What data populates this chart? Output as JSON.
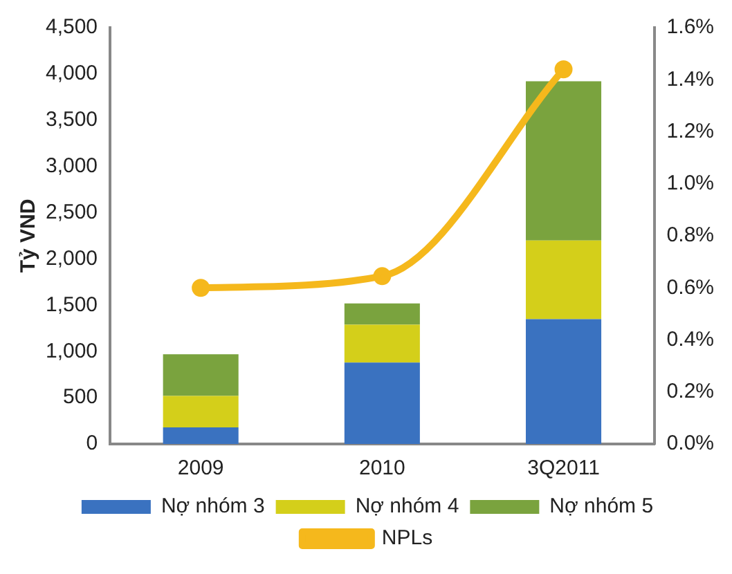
{
  "chart_data": {
    "type": "bar",
    "stacked": true,
    "ylabel": "Tỷ VND",
    "categories": [
      "2009",
      "2010",
      "3Q2011"
    ],
    "series": [
      {
        "name": "Nợ nhóm 3",
        "color": "#3a72c0",
        "values": [
          180,
          880,
          1350
        ]
      },
      {
        "name": "Nợ nhóm 4",
        "color": "#d4cf1a",
        "values": [
          340,
          410,
          850
        ]
      },
      {
        "name": "Nợ nhóm 5",
        "color": "#7aa33e",
        "values": [
          450,
          230,
          1720
        ]
      },
      {
        "name": "NPLs",
        "type": "line",
        "axis": "y2",
        "color": "#f5b81c",
        "values": [
          0.6,
          0.645,
          1.44
        ]
      }
    ],
    "ylim": [
      0,
      4500
    ],
    "yticks": [
      {
        "value": 0,
        "label": "0"
      },
      {
        "value": 500,
        "label": "500"
      },
      {
        "value": 1000,
        "label": "1,000"
      },
      {
        "value": 1500,
        "label": "1,500"
      },
      {
        "value": 2000,
        "label": "2,000"
      },
      {
        "value": 2500,
        "label": "2,500"
      },
      {
        "value": 3000,
        "label": "3,000"
      },
      {
        "value": 3500,
        "label": "3,500"
      },
      {
        "value": 4000,
        "label": "4,000"
      },
      {
        "value": 4500,
        "label": "4,500"
      }
    ],
    "y2lim": [
      0,
      1.6
    ],
    "y2ticks": [
      {
        "value": 0,
        "label": "0.0%"
      },
      {
        "value": 0.2,
        "label": "0.2%"
      },
      {
        "value": 0.4,
        "label": "0.4%"
      },
      {
        "value": 0.6,
        "label": "0.6%"
      },
      {
        "value": 0.8,
        "label": "0.8%"
      },
      {
        "value": 1.0,
        "label": "1.0%"
      },
      {
        "value": 1.2,
        "label": "1.2%"
      },
      {
        "value": 1.4,
        "label": "1.4%"
      },
      {
        "value": 1.6,
        "label": "1.6%"
      }
    ],
    "grid": false,
    "legend": "bottom",
    "marker": "circle",
    "line_style": "solid"
  }
}
